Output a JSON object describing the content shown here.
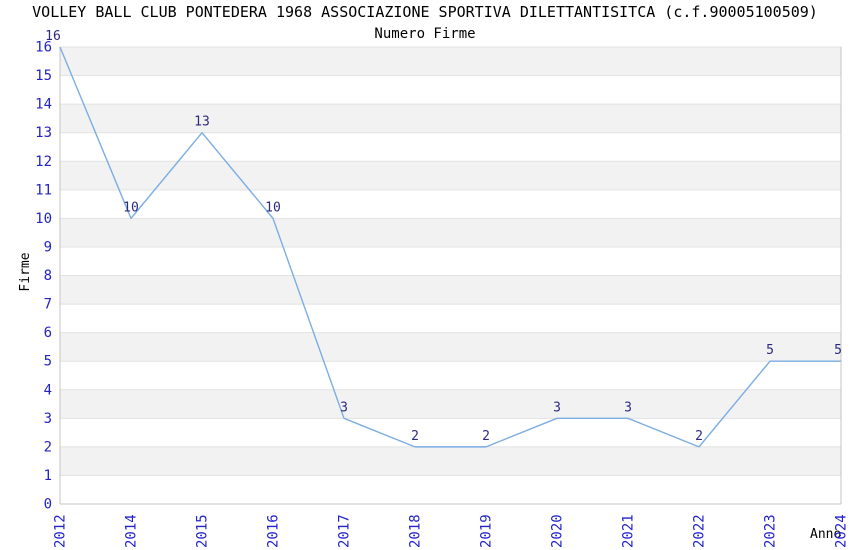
{
  "chart_data": {
    "type": "line",
    "title": "VOLLEY BALL CLUB PONTEDERA 1968 ASSOCIAZIONE SPORTIVA DILETTANTISITCA (c.f.90005100509)",
    "subtitle": "Numero Firme",
    "xlabel": "Anno",
    "ylabel": "Firme",
    "categories": [
      "2012",
      "2014",
      "2015",
      "2016",
      "2017",
      "2018",
      "2019",
      "2020",
      "2021",
      "2022",
      "2023",
      "2024"
    ],
    "values": [
      16,
      10,
      13,
      10,
      3,
      2,
      2,
      3,
      3,
      2,
      5,
      5
    ],
    "data_labels": [
      16,
      10,
      13,
      10,
      3,
      2,
      2,
      3,
      3,
      2,
      5,
      5
    ],
    "ylim": [
      0,
      16
    ],
    "ytick_interval": 1,
    "grid": true,
    "alternating_bands": true,
    "legend_position": "none",
    "colors": {
      "line": "#7cade3",
      "tick_label": "#2323cc",
      "data_label": "#2b2b7e",
      "band": "#f2f2f2",
      "grid": "#e2e2e2",
      "spine": "#c4c4c4",
      "text": "#000000"
    }
  }
}
